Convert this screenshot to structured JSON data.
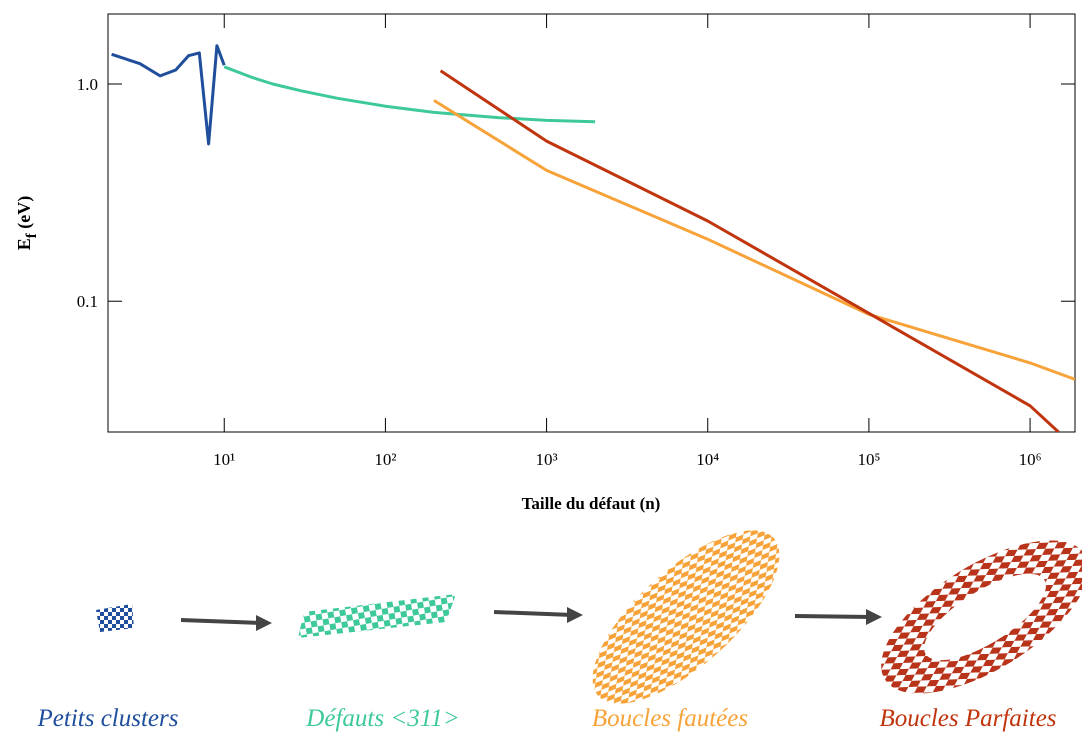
{
  "chart_data": {
    "type": "line",
    "xlabel": "Taille du défaut (n)",
    "ylabel": [
      "E",
      "f",
      " (eV)"
    ],
    "xscale": "log",
    "yscale": "log",
    "xlim": [
      1.9,
      1900000
    ],
    "ylim": [
      0.025,
      2.1
    ],
    "xticks": [
      {
        "value": 10,
        "label": "10¹"
      },
      {
        "value": 100,
        "label": "10²"
      },
      {
        "value": 1000,
        "label": "10³"
      },
      {
        "value": 10000,
        "label": "10⁴"
      },
      {
        "value": 100000,
        "label": "10⁵"
      },
      {
        "value": 1000000,
        "label": "10⁶"
      }
    ],
    "yticks": [
      {
        "value": 1,
        "label": "1.0"
      },
      0.1
    ],
    "series": [
      {
        "name": "Petits clusters",
        "color": "#1f4e9c",
        "x": [
          2,
          3,
          4,
          5,
          6,
          7,
          8,
          9,
          10
        ],
        "values": [
          1.37,
          1.24,
          1.09,
          1.16,
          1.35,
          1.39,
          0.53,
          1.5,
          1.22
        ]
      },
      {
        "name": "Défauts <311>",
        "color": "#3ec99a",
        "x": [
          10,
          15,
          20,
          30,
          50,
          100,
          200,
          500,
          1000,
          2000
        ],
        "values": [
          1.2,
          1.07,
          1.0,
          0.93,
          0.86,
          0.79,
          0.74,
          0.7,
          0.68,
          0.67
        ]
      },
      {
        "name": "Boucles fautées",
        "color": "#f7a33a",
        "x": [
          200,
          1000,
          10000,
          100000,
          1000000,
          1900000
        ],
        "values": [
          0.84,
          0.4,
          0.193,
          0.087,
          0.052,
          0.0437
        ]
      },
      {
        "name": "Boucles Parfaites",
        "color": "#c0340e",
        "x": [
          220,
          1000,
          10000,
          100000,
          1000000,
          1500000
        ],
        "values": [
          1.15,
          0.546,
          0.234,
          0.088,
          0.033,
          0.025
        ]
      }
    ]
  }
}
